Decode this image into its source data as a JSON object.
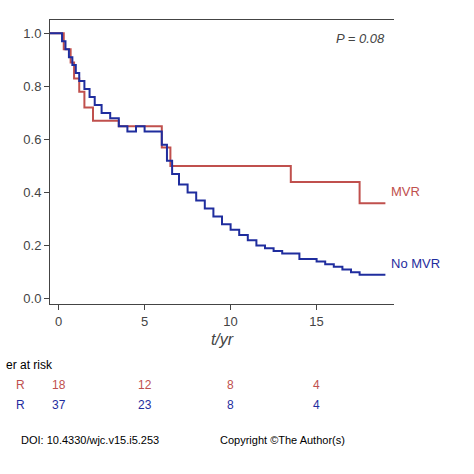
{
  "chart_data": {
    "type": "step",
    "xlabel": "t/yr",
    "xlim": [
      -0.5,
      19.5
    ],
    "ylim": [
      -0.02,
      1.05
    ],
    "xticks": [
      0,
      5,
      10,
      15
    ],
    "yticks": [
      {
        "value": 0,
        "label": "0.0"
      },
      0.2,
      0.4,
      0.6,
      0.8,
      {
        "value": 1,
        "label": "1.0"
      }
    ],
    "grid": false,
    "series": [
      {
        "name": "MVR",
        "color": "#c0504d",
        "x": [
          -0.5,
          0.0,
          0.3,
          0.7,
          0.9,
          1.2,
          1.5,
          2.0,
          3.5,
          5.5,
          6.0,
          6.5,
          13.5,
          17.5,
          19.0
        ],
        "values": [
          1.0,
          1.0,
          0.94,
          0.89,
          0.83,
          0.78,
          0.72,
          0.67,
          0.65,
          0.65,
          0.57,
          0.5,
          0.44,
          0.36,
          0.36
        ]
      },
      {
        "name": "No MVR",
        "color": "#1f2d9e",
        "x": [
          -0.5,
          0.0,
          0.2,
          0.4,
          0.6,
          0.8,
          1.0,
          1.2,
          1.5,
          1.8,
          2.1,
          2.5,
          3.0,
          3.5,
          4.0,
          4.5,
          5.0,
          5.5,
          6.0,
          6.3,
          6.6,
          7.0,
          7.5,
          8.0,
          8.5,
          9.0,
          9.5,
          10.0,
          10.5,
          11.0,
          11.5,
          12.0,
          12.5,
          13.0,
          14.0,
          15.0,
          15.5,
          16.0,
          16.5,
          17.0,
          17.5,
          19.0
        ],
        "values": [
          1.0,
          1.0,
          0.97,
          0.94,
          0.91,
          0.88,
          0.85,
          0.82,
          0.79,
          0.76,
          0.73,
          0.7,
          0.68,
          0.65,
          0.63,
          0.65,
          0.63,
          0.63,
          0.58,
          0.52,
          0.47,
          0.43,
          0.4,
          0.37,
          0.34,
          0.31,
          0.28,
          0.26,
          0.24,
          0.22,
          0.2,
          0.19,
          0.18,
          0.17,
          0.15,
          0.14,
          0.13,
          0.12,
          0.11,
          0.1,
          0.09,
          0.09
        ]
      }
    ],
    "p_value_text": "P = 0.08",
    "risk_table": {
      "header": "er at risk",
      "times": [
        0,
        5,
        10,
        15
      ],
      "rows": [
        {
          "name": "R",
          "color": "#c0504d",
          "values": [
            18,
            12,
            8,
            4
          ]
        },
        {
          "name": "R",
          "color": "#1f2d9e",
          "values": [
            37,
            23,
            8,
            4
          ]
        }
      ]
    },
    "annotations": [
      "DOI: 10.4330/wjc.v15.i5.253",
      "Copyright ©The Author(s)"
    ]
  }
}
